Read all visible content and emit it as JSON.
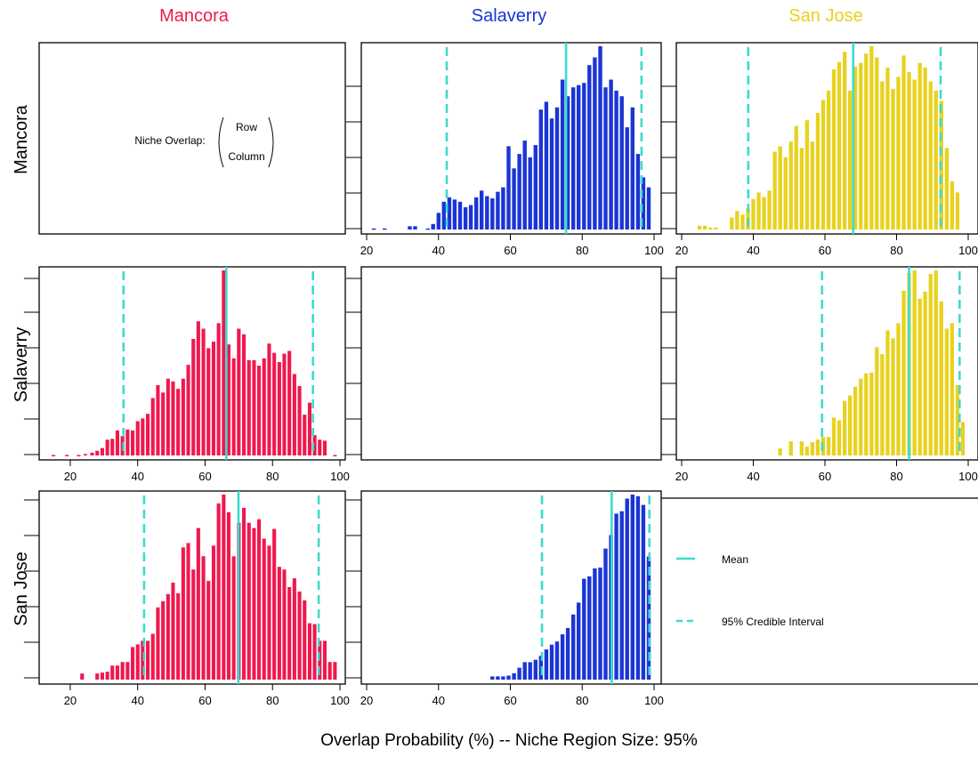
{
  "colors": {
    "Mancora": "#f0184e",
    "Salaverry": "#1a35d6",
    "San Jose": "#e8d21e",
    "reference_lines": "#3ddad0"
  },
  "column_titles": [
    "Mancora",
    "Salaverry",
    "San Jose"
  ],
  "row_titles": [
    "Mancora",
    "Salaverry",
    "San Jose"
  ],
  "note": {
    "prefix": "Niche Overlap:",
    "row": "Row",
    "column": "Column"
  },
  "legend": {
    "mean": "Mean",
    "ci": "95% Credible Interval"
  },
  "xlabel": "Overlap Probability (%) -- Niche Region Size: 95%",
  "chart_data": [
    {
      "type": "bar",
      "row": "Mancora",
      "column": "Salaverry",
      "xlim": [
        20,
        100
      ],
      "xticks": [
        20,
        40,
        60,
        80,
        100
      ],
      "bin_width": 1.5,
      "x": [
        22,
        25,
        32,
        33.5,
        37,
        38.5,
        40,
        41.5,
        43,
        44.5,
        46,
        47.5,
        49,
        50.5,
        52,
        53.5,
        55,
        56.5,
        58,
        59.5,
        61,
        62.5,
        64,
        65.5,
        67,
        68.5,
        70,
        71.5,
        73,
        74.5,
        76,
        77.5,
        79,
        80.5,
        82,
        83.5,
        85,
        86.5,
        88,
        89.5,
        91,
        92.5,
        94,
        95.5,
        97,
        98.5
      ],
      "values": [
        1,
        1,
        3,
        3,
        1,
        5,
        15,
        25,
        29,
        27,
        25,
        20,
        22,
        29,
        35,
        30,
        28,
        34,
        38,
        75,
        55,
        68,
        80,
        65,
        76,
        108,
        115,
        100,
        110,
        135,
        120,
        128,
        130,
        132,
        148,
        155,
        165,
        128,
        135,
        125,
        120,
        92,
        110,
        68,
        47,
        38
      ],
      "mean": 75.5,
      "ci": [
        42.3,
        96.5
      ]
    },
    {
      "type": "bar",
      "row": "Mancora",
      "column": "San Jose",
      "xlim": [
        20,
        100
      ],
      "xticks": [
        20,
        40,
        60,
        80,
        100
      ],
      "bin_width": 1.5,
      "x": [
        25,
        26.5,
        28,
        29.5,
        34,
        35.5,
        37,
        38.5,
        40,
        41.5,
        43,
        44.5,
        46,
        47.5,
        49,
        50.5,
        52,
        53.5,
        55,
        56.5,
        58,
        59.5,
        61,
        62.5,
        64,
        65.5,
        67,
        68.5,
        70,
        71.5,
        73,
        74.5,
        76,
        77.5,
        79,
        80.5,
        82,
        83.5,
        85,
        86.5,
        88,
        89.5,
        91,
        92.5,
        94,
        95.5,
        97
      ],
      "values": [
        4,
        4,
        2,
        2,
        13,
        20,
        16,
        23,
        33,
        40,
        35,
        42,
        84,
        90,
        78,
        95,
        112,
        88,
        118,
        95,
        126,
        140,
        150,
        173,
        181,
        192,
        150,
        176,
        180,
        190,
        198,
        186,
        160,
        175,
        152,
        165,
        188,
        170,
        162,
        180,
        175,
        160,
        150,
        139,
        88,
        52,
        40
      ],
      "mean": 67.9,
      "ci": [
        38.6,
        92.3
      ]
    },
    {
      "type": "bar",
      "row": "Salaverry",
      "column": "Mancora",
      "xlim": [
        15,
        100
      ],
      "xticks": [
        20,
        40,
        60,
        80,
        100
      ],
      "bin_width": 1.5,
      "x": [
        15,
        19,
        22.5,
        24.5,
        26.5,
        28,
        29.5,
        31,
        32.5,
        34,
        35.5,
        37,
        38.5,
        40,
        41.5,
        43,
        44.5,
        46,
        47.5,
        49,
        50.5,
        52,
        53.5,
        55,
        56.5,
        58,
        59.5,
        61,
        62.5,
        64,
        65.5,
        67,
        68.5,
        70,
        71.5,
        73,
        74.5,
        76,
        77.5,
        79,
        80.5,
        82,
        83.5,
        85,
        86.5,
        88,
        89.5,
        91,
        92.5,
        94,
        95.5,
        98.5
      ],
      "values": [
        0.5,
        0.5,
        0.5,
        1.5,
        3,
        5,
        8,
        17,
        18,
        27,
        21,
        28,
        27,
        37,
        40,
        45,
        62,
        76,
        68,
        83,
        80,
        72,
        83,
        98,
        126,
        145,
        137,
        116,
        123,
        143,
        200,
        120,
        105,
        137,
        131,
        103,
        103,
        97,
        105,
        121,
        111,
        101,
        110,
        113,
        88,
        75,
        44,
        57,
        22,
        17,
        16,
        0.5
      ],
      "mean": 66.3,
      "ci": [
        35.8,
        92.0
      ]
    },
    {
      "type": "bar",
      "row": "Salaverry",
      "column": "San Jose",
      "xlim": [
        20,
        100
      ],
      "xticks": [
        20,
        40,
        60,
        80,
        100
      ],
      "bin_width": 1.5,
      "x": [
        47.5,
        50.5,
        53.5,
        55,
        56.5,
        58,
        59.5,
        61,
        62.5,
        64,
        65.5,
        67,
        68.5,
        70,
        71.5,
        73,
        74.5,
        76,
        77.5,
        79,
        80.5,
        82,
        83.5,
        85,
        86.5,
        88,
        89.5,
        91,
        92.5,
        94,
        95.5,
        97,
        98.5
      ],
      "values": [
        8,
        16,
        16,
        10,
        15,
        18,
        21,
        21,
        43,
        40,
        62,
        68,
        78,
        87,
        93,
        94,
        123,
        115,
        142,
        133,
        150,
        187,
        207,
        210,
        178,
        186,
        206,
        210,
        175,
        144,
        150,
        80,
        38
      ],
      "mean": 83.5,
      "ci": [
        59.2,
        97.6
      ]
    },
    {
      "type": "bar",
      "row": "San Jose",
      "column": "Mancora",
      "xlim": [
        15,
        100
      ],
      "xticks": [
        20,
        40,
        60,
        80,
        100
      ],
      "bin_width": 1.5,
      "x": [
        23.5,
        28,
        29.5,
        31,
        32.5,
        34,
        35.5,
        37,
        38.5,
        40,
        41.5,
        43,
        44.5,
        46,
        47.5,
        49,
        50.5,
        52,
        53.5,
        55,
        56.5,
        58,
        59.5,
        61,
        62.5,
        64,
        65.5,
        67,
        68.5,
        70,
        71.5,
        73,
        74.5,
        76,
        77.5,
        79,
        80.5,
        82,
        83.5,
        85,
        86.5,
        88,
        89.5,
        91,
        92.5,
        94,
        95.5,
        97,
        98.5
      ],
      "values": [
        7,
        7,
        8,
        9,
        16,
        16,
        20,
        20,
        37,
        40,
        44,
        44,
        52,
        82,
        89,
        97,
        110,
        98,
        150,
        155,
        125,
        172,
        140,
        112,
        152,
        200,
        210,
        190,
        140,
        178,
        195,
        178,
        172,
        182,
        160,
        152,
        171,
        128,
        125,
        105,
        115,
        100,
        90,
        64,
        63,
        44,
        44,
        20,
        20
      ],
      "mean": 69.9,
      "ci": [
        41.9,
        93.7
      ]
    },
    {
      "type": "bar",
      "row": "San Jose",
      "column": "Salaverry",
      "xlim": [
        20,
        100
      ],
      "xticks": [
        20,
        40,
        60,
        80,
        100
      ],
      "bin_width": 1.5,
      "x": [
        55,
        56.5,
        58,
        59.5,
        61,
        62.5,
        64,
        65.5,
        67,
        68.5,
        70,
        71.5,
        73,
        74.5,
        76,
        77.5,
        79,
        80.5,
        82,
        83.5,
        85,
        86.5,
        88,
        89.5,
        91,
        92.5,
        94,
        95.5,
        97,
        98.5
      ],
      "values": [
        4,
        4,
        4,
        5,
        8,
        15,
        22,
        22,
        25,
        30,
        38,
        44,
        48,
        57,
        65,
        82,
        97,
        127,
        130,
        140,
        141,
        165,
        182,
        209,
        212,
        228,
        233,
        231,
        220,
        155
      ],
      "mean": 88.2,
      "ci": [
        68.8,
        98.7
      ]
    }
  ]
}
